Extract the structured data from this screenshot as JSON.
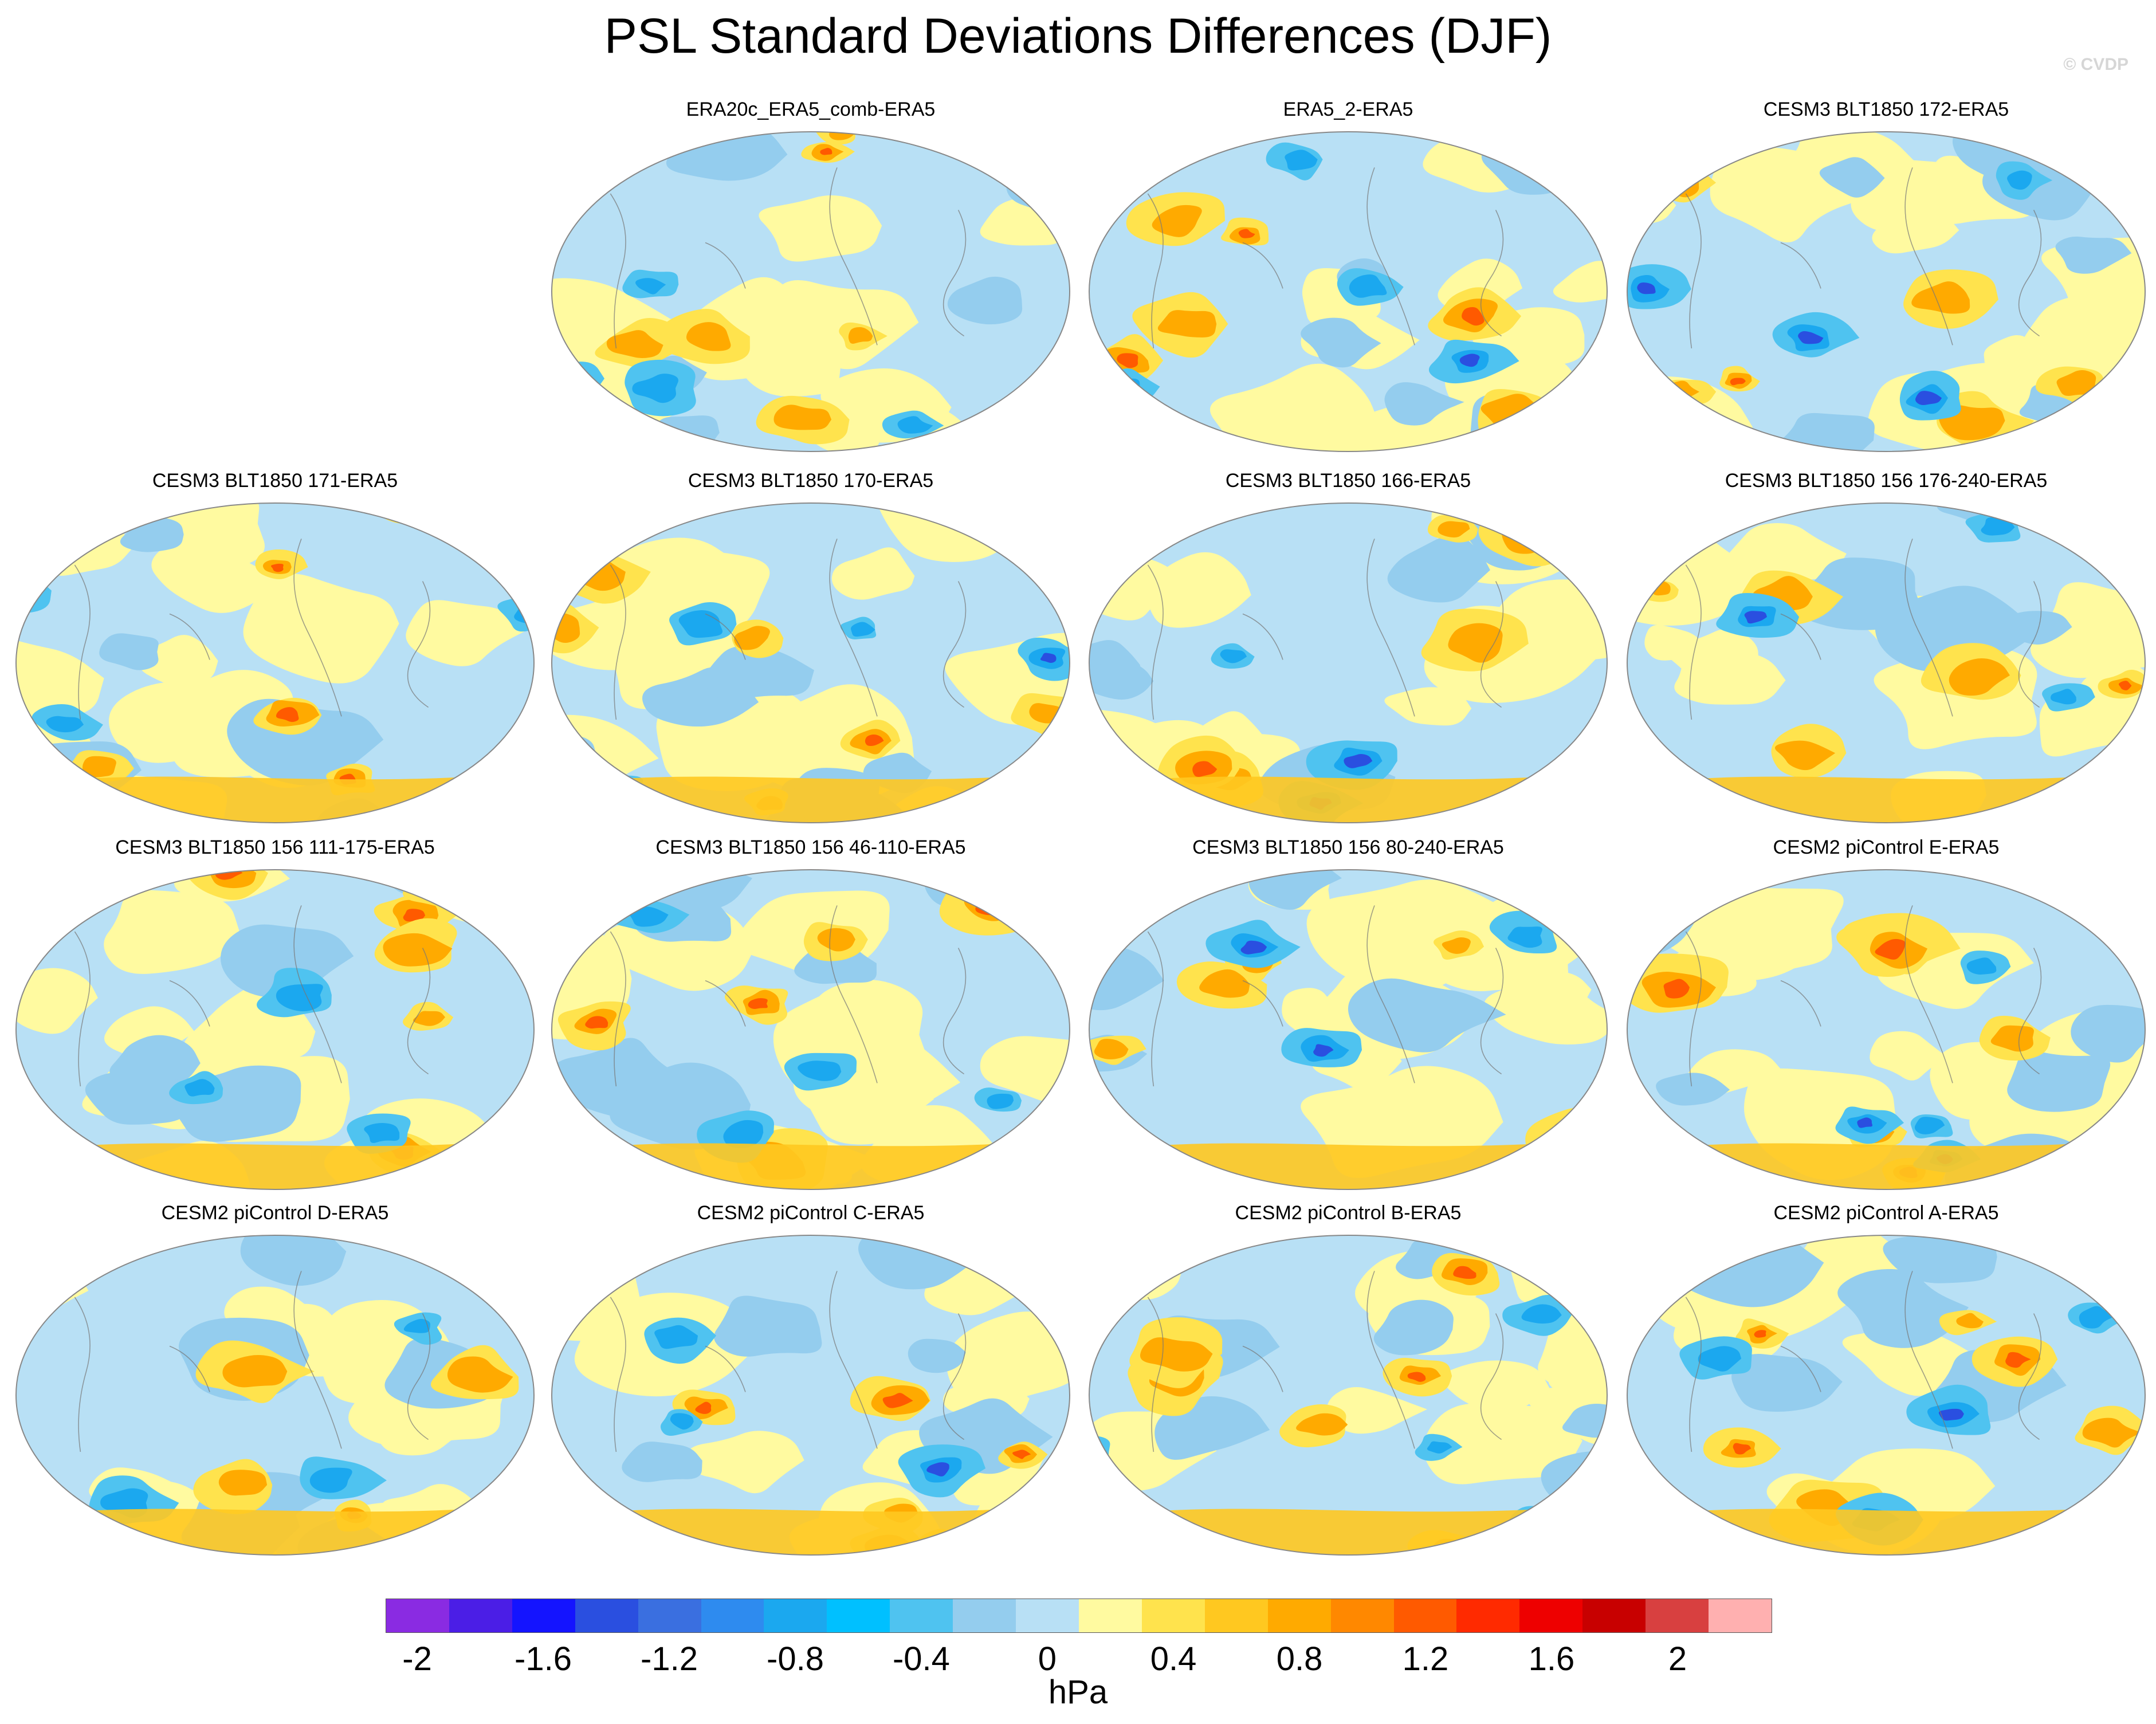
{
  "title": "PSL Standard Deviations Differences (DJF)",
  "watermark": "© CVDP",
  "panels": [
    {
      "title": "ERA20c_ERA5_comb-ERA5",
      "row": 0,
      "col": 1,
      "seed": 11
    },
    {
      "title": "ERA5_2-ERA5",
      "row": 0,
      "col": 2,
      "seed": 12
    },
    {
      "title": "CESM3 BLT1850 172-ERA5",
      "row": 0,
      "col": 3,
      "seed": 13
    },
    {
      "title": "CESM3 BLT1850 171-ERA5",
      "row": 1,
      "col": 0,
      "seed": 14
    },
    {
      "title": "CESM3 BLT1850 170-ERA5",
      "row": 1,
      "col": 1,
      "seed": 15
    },
    {
      "title": "CESM3 BLT1850 166-ERA5",
      "row": 1,
      "col": 2,
      "seed": 16
    },
    {
      "title": "CESM3 BLT1850 156 176-240-ERA5",
      "row": 1,
      "col": 3,
      "seed": 17
    },
    {
      "title": "CESM3 BLT1850 156 111-175-ERA5",
      "row": 2,
      "col": 0,
      "seed": 18
    },
    {
      "title": "CESM3 BLT1850 156 46-110-ERA5",
      "row": 2,
      "col": 1,
      "seed": 19
    },
    {
      "title": "CESM3 BLT1850 156 80-240-ERA5",
      "row": 2,
      "col": 2,
      "seed": 20
    },
    {
      "title": "CESM2 piControl E-ERA5",
      "row": 2,
      "col": 3,
      "seed": 21
    },
    {
      "title": "CESM2 piControl D-ERA5",
      "row": 3,
      "col": 0,
      "seed": 22
    },
    {
      "title": "CESM2 piControl C-ERA5",
      "row": 3,
      "col": 1,
      "seed": 23
    },
    {
      "title": "CESM2 piControl B-ERA5",
      "row": 3,
      "col": 2,
      "seed": 24
    },
    {
      "title": "CESM2 piControl A-ERA5",
      "row": 3,
      "col": 3,
      "seed": 25
    }
  ],
  "colorbar": {
    "colors": [
      "#8a2be2",
      "#4b1ee6",
      "#1414ff",
      "#2a4fe0",
      "#3a6fe0",
      "#2e8bef",
      "#1ba8ef",
      "#00c0ff",
      "#4fc3f0",
      "#94cdee",
      "#b8e0f5",
      "#fffaa0",
      "#ffe34d",
      "#ffc820",
      "#ffaa00",
      "#ff8800",
      "#ff5a00",
      "#ff2a00",
      "#ee0000",
      "#c80000",
      "#d84040",
      "#ffb0b0"
    ],
    "labels": [
      "-2",
      "-1.6",
      "-1.2",
      "-0.8",
      "-0.4",
      "0",
      "0.4",
      "0.8",
      "1.2",
      "1.6",
      "2"
    ],
    "label_positions": [
      0.0455,
      0.2273,
      0.4091,
      0.5909,
      0.7727,
      0.9545,
      1.1364,
      1.3182,
      1.5,
      1.6818,
      1.8636
    ],
    "units": "hPa"
  }
}
